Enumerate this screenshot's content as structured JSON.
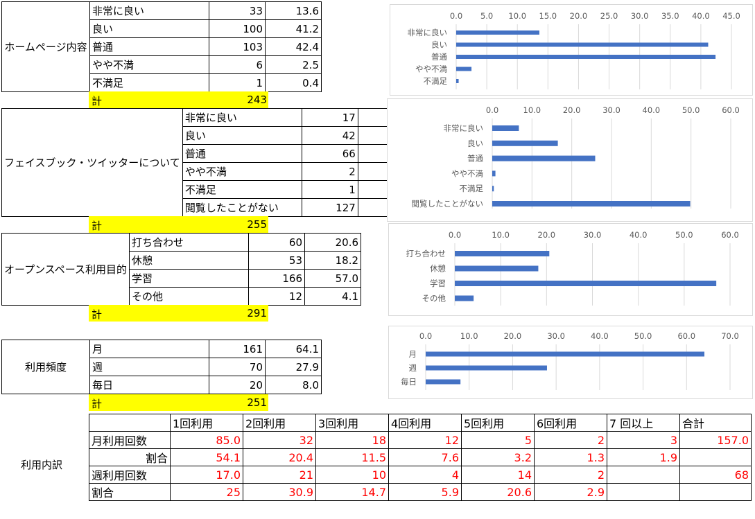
{
  "homepage": {
    "category": "ホームページ内容",
    "rows": [
      {
        "label": "非常に良い",
        "count": "33",
        "pct": "13.6"
      },
      {
        "label": "良い",
        "count": "100",
        "pct": "41.2"
      },
      {
        "label": "普通",
        "count": "103",
        "pct": "42.4"
      },
      {
        "label": "やや不満",
        "count": "6",
        "pct": "2.5"
      },
      {
        "label": "不満足",
        "count": "1",
        "pct": "0.4"
      }
    ],
    "total_label": "計",
    "total": "243"
  },
  "facebook": {
    "category": "フェイスブック・ツイッターについて",
    "rows": [
      {
        "label": "非常に良い",
        "count": "17",
        "pct": "6.7"
      },
      {
        "label": "良い",
        "count": "42",
        "pct": "16.5"
      },
      {
        "label": "普通",
        "count": "66",
        "pct": "25.9"
      },
      {
        "label": "やや不満",
        "count": "2",
        "pct": "0.8"
      },
      {
        "label": "不満足",
        "count": "1",
        "pct": "0.4"
      },
      {
        "label": "閲覧したことがない",
        "count": "127",
        "pct": "49.8"
      }
    ],
    "total_label": "計",
    "total": "255"
  },
  "openspace": {
    "category": "オープンスペース利用目的",
    "rows": [
      {
        "label": "打ち合わせ",
        "count": "60",
        "pct": "20.6"
      },
      {
        "label": "休憩",
        "count": "53",
        "pct": "18.2"
      },
      {
        "label": "学習",
        "count": "166",
        "pct": "57.0"
      },
      {
        "label": "その他",
        "count": "12",
        "pct": "4.1"
      }
    ],
    "total_label": "計",
    "total": "291"
  },
  "frequency": {
    "category": "利用頻度",
    "rows": [
      {
        "label": "月",
        "count": "161",
        "pct": "64.1"
      },
      {
        "label": "週",
        "count": "70",
        "pct": "27.9"
      },
      {
        "label": "毎日",
        "count": "20",
        "pct": "8.0"
      }
    ],
    "total_label": "計",
    "total": "251"
  },
  "usage": {
    "category": "利用内訳",
    "headers": [
      "",
      "1回利用",
      "2回利用",
      "3回利用",
      "4回利用",
      "5回利用",
      "6回利用",
      "7 回以上",
      "合計"
    ],
    "rows": [
      [
        "月利用回数",
        "85.0",
        "32",
        "18",
        "12",
        "5",
        "2",
        "3",
        "157.0"
      ],
      [
        "割合",
        "54.1",
        "20.4",
        "11.5",
        "7.6",
        "3.2",
        "1.3",
        "1.9",
        ""
      ],
      [
        "週利用回数",
        "17.0",
        "21",
        "10",
        "4",
        "14",
        "2",
        "",
        "68"
      ],
      [
        "割合",
        "25",
        "30.9",
        "14.7",
        "5.9",
        "20.6",
        "2.9",
        "",
        ""
      ]
    ]
  },
  "colors": {
    "bar": "#4472c4",
    "highlight": "#ffff00",
    "red": "#ff0000",
    "grid": "#d9d9d9"
  },
  "chart_data": [
    {
      "type": "bar",
      "orientation": "horizontal",
      "categories": [
        "非常に良い",
        "良い",
        "普通",
        "やや不満",
        "不満足"
      ],
      "values": [
        13.6,
        41.2,
        42.4,
        2.5,
        0.4
      ],
      "ticks": [
        "0.0",
        "5.0",
        "10.0",
        "15.0",
        "20.0",
        "25.0",
        "30.0",
        "35.0",
        "40.0",
        "45.0"
      ],
      "xlim": [
        0,
        45
      ],
      "grid": true
    },
    {
      "type": "bar",
      "orientation": "horizontal",
      "categories": [
        "非常に良い",
        "良い",
        "普通",
        "やや不満",
        "不満足",
        "閲覧したことがない"
      ],
      "values": [
        6.7,
        16.5,
        25.9,
        0.8,
        0.4,
        49.8
      ],
      "ticks": [
        "0.0",
        "10.0",
        "20.0",
        "30.0",
        "40.0",
        "50.0",
        "60.0"
      ],
      "xlim": [
        0,
        60
      ],
      "grid": true
    },
    {
      "type": "bar",
      "orientation": "horizontal",
      "categories": [
        "打ち合わせ",
        "休憩",
        "学習",
        "その他"
      ],
      "values": [
        20.6,
        18.2,
        57.0,
        4.1
      ],
      "ticks": [
        "0.0",
        "10.0",
        "20.0",
        "30.0",
        "40.0",
        "50.0",
        "60.0"
      ],
      "xlim": [
        0,
        60
      ],
      "grid": true
    },
    {
      "type": "bar",
      "orientation": "horizontal",
      "categories": [
        "月",
        "週",
        "毎日"
      ],
      "values": [
        64.1,
        27.9,
        8.0
      ],
      "ticks": [
        "0.0",
        "10.0",
        "20.0",
        "30.0",
        "40.0",
        "50.0",
        "60.0",
        "70.0"
      ],
      "xlim": [
        0,
        70
      ],
      "grid": true
    }
  ]
}
